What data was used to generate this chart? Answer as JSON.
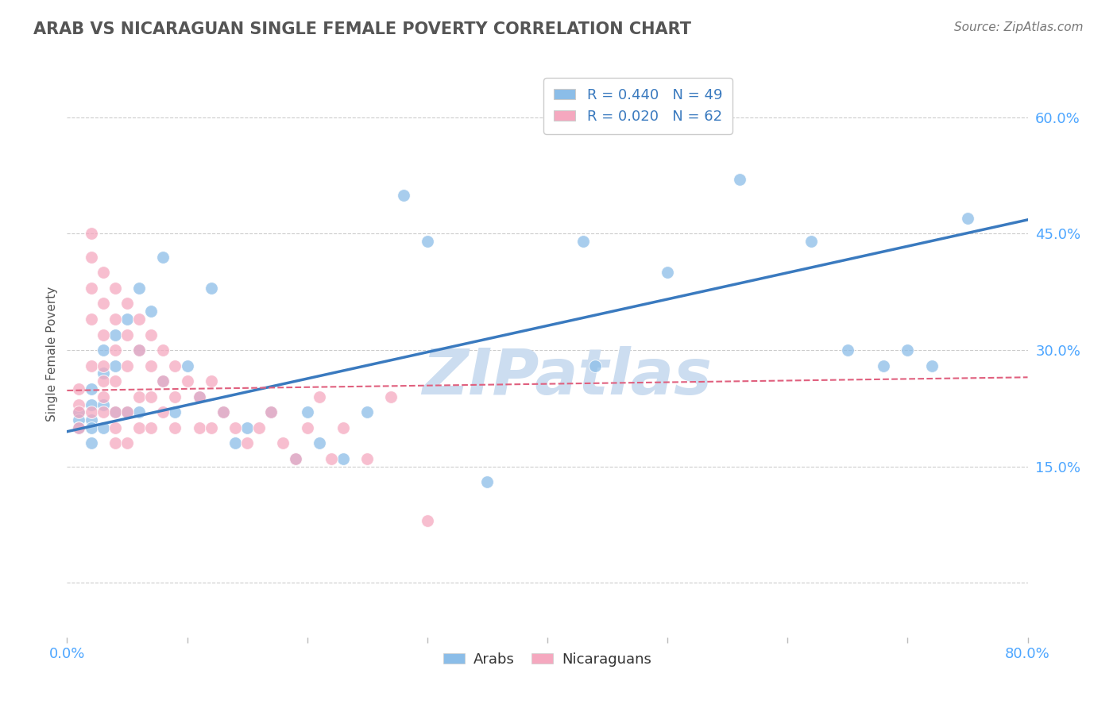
{
  "title": "ARAB VS NICARAGUAN SINGLE FEMALE POVERTY CORRELATION CHART",
  "source": "Source: ZipAtlas.com",
  "ylabel": "Single Female Poverty",
  "xlim": [
    0.0,
    0.8
  ],
  "ylim": [
    -0.07,
    0.66
  ],
  "ytick_vals": [
    0.0,
    0.15,
    0.3,
    0.45,
    0.6
  ],
  "ytick_labels": [
    "",
    "15.0%",
    "30.0%",
    "45.0%",
    "60.0%"
  ],
  "xtick_major": [
    0.0,
    0.1,
    0.2,
    0.3,
    0.4,
    0.5,
    0.6,
    0.7,
    0.8
  ],
  "xtick_show_labels": [
    0.0,
    0.8
  ],
  "xtick_label_map": {
    "0.0": "0.0%",
    "0.8": "80.0%"
  },
  "arab_R": 0.44,
  "arab_N": 49,
  "nic_R": 0.02,
  "nic_N": 62,
  "arab_color": "#8bbde8",
  "nic_color": "#f5a8bf",
  "arab_line_color": "#3a7abf",
  "nic_line_color": "#e0607e",
  "watermark": "ZIPatlas",
  "watermark_color": "#ccddf0",
  "background_color": "#ffffff",
  "grid_color": "#cccccc",
  "title_color": "#555555",
  "axis_label_color": "#4da6ff",
  "title_fontsize": 15,
  "source_fontsize": 11,
  "legend_fontsize": 13,
  "arab_line_start_y": 0.195,
  "arab_line_end_y": 0.468,
  "nic_line_start_y": 0.248,
  "nic_line_end_y": 0.265,
  "arab_x": [
    0.01,
    0.01,
    0.01,
    0.02,
    0.02,
    0.02,
    0.02,
    0.02,
    0.03,
    0.03,
    0.03,
    0.03,
    0.04,
    0.04,
    0.04,
    0.05,
    0.05,
    0.06,
    0.06,
    0.06,
    0.07,
    0.08,
    0.08,
    0.09,
    0.1,
    0.11,
    0.12,
    0.13,
    0.14,
    0.15,
    0.17,
    0.19,
    0.2,
    0.21,
    0.23,
    0.25,
    0.28,
    0.3,
    0.35,
    0.43,
    0.44,
    0.5,
    0.56,
    0.62,
    0.65,
    0.68,
    0.7,
    0.72,
    0.75
  ],
  "arab_y": [
    0.22,
    0.21,
    0.2,
    0.25,
    0.23,
    0.21,
    0.2,
    0.18,
    0.3,
    0.27,
    0.23,
    0.2,
    0.32,
    0.28,
    0.22,
    0.34,
    0.22,
    0.38,
    0.3,
    0.22,
    0.35,
    0.42,
    0.26,
    0.22,
    0.28,
    0.24,
    0.38,
    0.22,
    0.18,
    0.2,
    0.22,
    0.16,
    0.22,
    0.18,
    0.16,
    0.22,
    0.5,
    0.44,
    0.13,
    0.44,
    0.28,
    0.4,
    0.52,
    0.44,
    0.3,
    0.28,
    0.3,
    0.28,
    0.47
  ],
  "nic_x": [
    0.01,
    0.01,
    0.01,
    0.01,
    0.02,
    0.02,
    0.02,
    0.02,
    0.02,
    0.02,
    0.03,
    0.03,
    0.03,
    0.03,
    0.03,
    0.03,
    0.03,
    0.04,
    0.04,
    0.04,
    0.04,
    0.04,
    0.04,
    0.04,
    0.05,
    0.05,
    0.05,
    0.05,
    0.05,
    0.06,
    0.06,
    0.06,
    0.06,
    0.07,
    0.07,
    0.07,
    0.07,
    0.08,
    0.08,
    0.08,
    0.09,
    0.09,
    0.09,
    0.1,
    0.11,
    0.11,
    0.12,
    0.12,
    0.13,
    0.14,
    0.15,
    0.16,
    0.17,
    0.18,
    0.19,
    0.2,
    0.21,
    0.22,
    0.23,
    0.25,
    0.27,
    0.3
  ],
  "nic_y": [
    0.25,
    0.23,
    0.22,
    0.2,
    0.45,
    0.42,
    0.38,
    0.34,
    0.28,
    0.22,
    0.4,
    0.36,
    0.32,
    0.28,
    0.26,
    0.24,
    0.22,
    0.38,
    0.34,
    0.3,
    0.26,
    0.22,
    0.2,
    0.18,
    0.36,
    0.32,
    0.28,
    0.22,
    0.18,
    0.34,
    0.3,
    0.24,
    0.2,
    0.32,
    0.28,
    0.24,
    0.2,
    0.3,
    0.26,
    0.22,
    0.28,
    0.24,
    0.2,
    0.26,
    0.24,
    0.2,
    0.26,
    0.2,
    0.22,
    0.2,
    0.18,
    0.2,
    0.22,
    0.18,
    0.16,
    0.2,
    0.24,
    0.16,
    0.2,
    0.16,
    0.24,
    0.08
  ]
}
